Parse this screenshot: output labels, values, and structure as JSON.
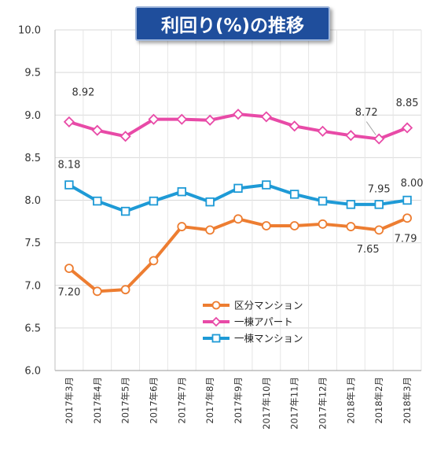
{
  "chart_data": {
    "type": "line",
    "title": "利回り(%)の推移",
    "categories": [
      "2017年3月",
      "2017年4月",
      "2017年5月",
      "2017年6月",
      "2017年7月",
      "2017年8月",
      "2017年9月",
      "2017年10月",
      "2017年11月",
      "2017年12月",
      "2018年1月",
      "2018年2月",
      "2018年3月"
    ],
    "ylim": [
      6.0,
      10.0
    ],
    "yticks": [
      "6.0",
      "6.5",
      "7.0",
      "7.5",
      "8.0",
      "8.5",
      "9.0",
      "9.5",
      "10.0"
    ],
    "grid": true,
    "legend_position": "bottom-center",
    "series": [
      {
        "name": "区分マンション",
        "color": "#ed7d31",
        "marker": "circle",
        "values": [
          7.2,
          6.93,
          6.95,
          7.29,
          7.69,
          7.65,
          7.78,
          7.7,
          7.7,
          7.72,
          7.69,
          7.65,
          7.79
        ]
      },
      {
        "name": "一棟アパート",
        "color": "#e84aa7",
        "marker": "diamond",
        "values": [
          8.92,
          8.82,
          8.75,
          8.95,
          8.95,
          8.94,
          9.01,
          8.98,
          8.87,
          8.81,
          8.76,
          8.72,
          8.85
        ]
      },
      {
        "name": "一棟マンション",
        "color": "#1e9ad6",
        "marker": "square",
        "values": [
          8.18,
          7.99,
          7.87,
          7.99,
          8.1,
          7.98,
          8.14,
          8.18,
          8.07,
          7.99,
          7.95,
          7.95,
          8.0
        ]
      }
    ],
    "annotations": [
      {
        "series": 1,
        "index": 0,
        "text": "8.92"
      },
      {
        "series": 1,
        "index": 11,
        "text": "8.72"
      },
      {
        "series": 1,
        "index": 12,
        "text": "8.85"
      },
      {
        "series": 2,
        "index": 0,
        "text": "8.18"
      },
      {
        "series": 2,
        "index": 11,
        "text": "7.95"
      },
      {
        "series": 2,
        "index": 12,
        "text": "8.00"
      },
      {
        "series": 0,
        "index": 0,
        "text": "7.20"
      },
      {
        "series": 0,
        "index": 11,
        "text": "7.65"
      },
      {
        "series": 0,
        "index": 12,
        "text": "7.79"
      }
    ]
  }
}
